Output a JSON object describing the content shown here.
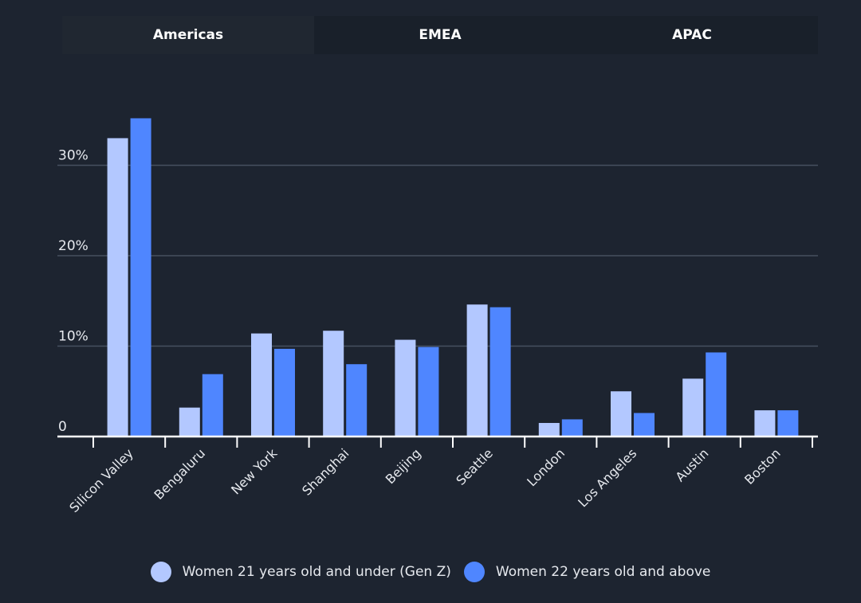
{
  "tabs": [
    {
      "label": "Americas"
    },
    {
      "label": "EMEA"
    },
    {
      "label": "APAC"
    }
  ],
  "colors": {
    "background": "#1d2430",
    "genz": "#b3c8ff",
    "older": "#4f86ff",
    "grid": "#46505f",
    "axis": "#ffffff",
    "text": "#e6e9ee"
  },
  "legend": {
    "genz_label": "Women 21 years old and under (Gen Z)",
    "older_label": "Women 22 years old and above"
  },
  "chart_data": {
    "type": "bar",
    "categories": [
      "Silicon Valley",
      "Bengaluru",
      "New York",
      "Shanghai",
      "Beijing",
      "Seattle",
      "London",
      "Los Angeles",
      "Austin",
      "Boston"
    ],
    "series": [
      {
        "name": "Women 21 years old and under (Gen Z)",
        "values": [
          33.0,
          3.2,
          11.4,
          11.7,
          10.7,
          14.6,
          1.5,
          5.0,
          6.4,
          2.9
        ]
      },
      {
        "name": "Women 22 years old and above",
        "values": [
          35.2,
          6.9,
          9.7,
          8.0,
          9.9,
          14.3,
          1.9,
          2.6,
          9.3,
          2.9
        ]
      }
    ],
    "yticks": [
      {
        "value": 0,
        "label": "0"
      },
      {
        "value": 10,
        "label": "10%"
      },
      {
        "value": 20,
        "label": "20%"
      },
      {
        "value": 30,
        "label": "30%"
      }
    ],
    "ylim": [
      0,
      36
    ],
    "grid": true,
    "legend_position": "bottom"
  }
}
